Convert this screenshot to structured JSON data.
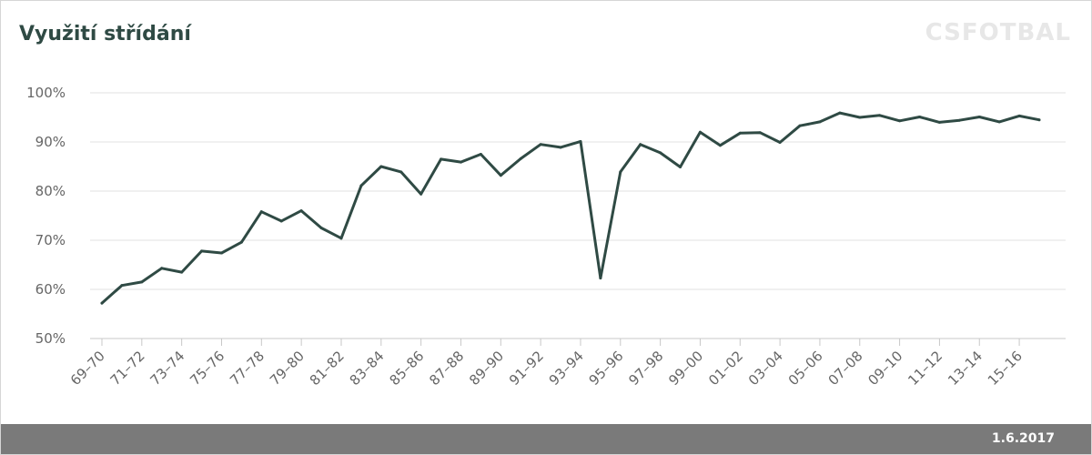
{
  "header": {
    "title": "Využití střídání",
    "brand": "CSFOTBAL"
  },
  "footer": {
    "date": "1.6.2017"
  },
  "colors": {
    "line": "#2f4a44",
    "grid": "#e0e0e0",
    "axis": "#c8c8c8",
    "footer": "#7a7a7a",
    "tick_text": "#666666"
  },
  "chart_data": {
    "type": "line",
    "title": "Využití střídání",
    "xlabel": "",
    "ylabel": "",
    "ylim": [
      50,
      100
    ],
    "yticks": [
      "50%",
      "60%",
      "70%",
      "80%",
      "90%",
      "100%"
    ],
    "ytick_values": [
      50,
      60,
      70,
      80,
      90,
      100
    ],
    "grid": "horizontal",
    "legend": "none",
    "categories": [
      "69–70",
      "70–71",
      "71–72",
      "72–73",
      "73–74",
      "74–75",
      "75–76",
      "76–77",
      "77–78",
      "78–79",
      "79–80",
      "80–81",
      "81–82",
      "82–83",
      "83–84",
      "84–85",
      "85–86",
      "86–87",
      "87–88",
      "88–89",
      "89–90",
      "90–91",
      "91–92",
      "92–93",
      "93–94",
      "94–95",
      "95–96",
      "96–97",
      "97–98",
      "98–99",
      "99–00",
      "00–01",
      "01–02",
      "02–03",
      "03–04",
      "04–05",
      "05–06",
      "06–07",
      "07–08",
      "08–09",
      "09–10",
      "10–11",
      "11–12",
      "12–13",
      "13–14",
      "14–15",
      "15–16",
      "16–17"
    ],
    "x_tick_labels": [
      "69–70",
      "71–72",
      "73–74",
      "75–76",
      "77–78",
      "79–80",
      "81–82",
      "83–84",
      "85–86",
      "87–88",
      "89–90",
      "91–92",
      "93–94",
      "95–96",
      "97–98",
      "99–00",
      "01–02",
      "03–04",
      "05–06",
      "07–08",
      "09–10",
      "11–12",
      "13–14",
      "15–16"
    ],
    "series": [
      {
        "values": [
          57.2,
          60.8,
          61.5,
          64.3,
          63.5,
          67.8,
          67.4,
          69.6,
          75.8,
          73.9,
          76.0,
          72.5,
          70.4,
          81.1,
          85.0,
          83.9,
          79.4,
          86.5,
          85.9,
          87.5,
          83.2,
          86.6,
          89.5,
          88.9,
          90.1,
          62.3,
          83.9,
          89.5,
          87.8,
          84.9,
          92.0,
          89.3,
          91.8,
          91.9,
          89.9,
          93.3,
          94.1,
          95.9,
          95.0,
          95.4,
          94.3,
          95.1,
          94.0,
          94.4,
          95.1,
          94.1,
          95.3,
          94.5
        ]
      }
    ]
  }
}
